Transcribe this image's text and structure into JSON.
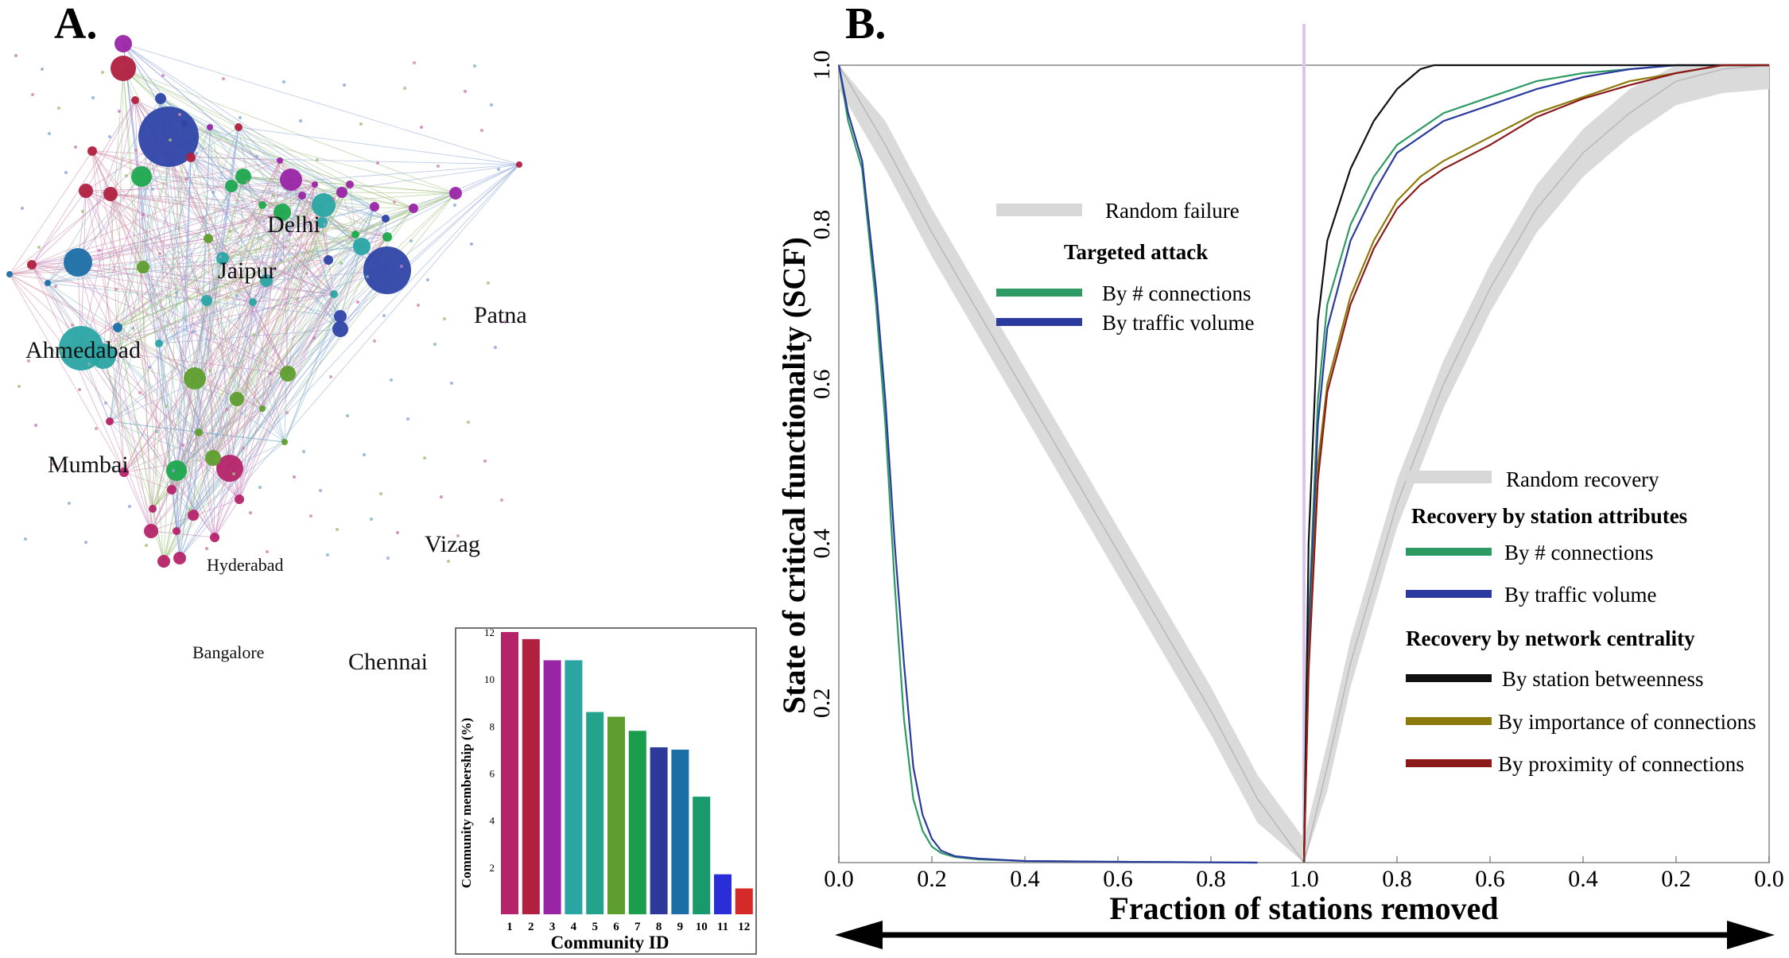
{
  "panel_a": {
    "letter": "A.",
    "city_labels": [
      "Delhi",
      "Jaipur",
      "Patna",
      "Ahmedabad",
      "Mumbai",
      "Vizag",
      "Hyderabad",
      "Bangalore",
      "Chennai"
    ]
  },
  "panel_b": {
    "letter": "B."
  },
  "chart_data": [
    {
      "type": "bar",
      "xlabel": "Community ID",
      "ylabel": "Community membership (%)",
      "categories": [
        "1",
        "2",
        "3",
        "4",
        "5",
        "6",
        "7",
        "8",
        "9",
        "10",
        "11",
        "12"
      ],
      "values": [
        12.0,
        11.7,
        10.8,
        10.8,
        8.6,
        8.4,
        7.8,
        7.1,
        7.0,
        5.0,
        1.7,
        1.1
      ],
      "colors": [
        "#b5246a",
        "#b0203f",
        "#9a24a6",
        "#2aa5a4",
        "#23a38c",
        "#5e9e2e",
        "#1b9e4b",
        "#2d3a9a",
        "#1b6fa6",
        "#199a6c",
        "#2a2ed6",
        "#d62a2a"
      ],
      "ylim": [
        0,
        12
      ],
      "yticks": [
        "2",
        "4",
        "6",
        "8",
        "10",
        "12"
      ]
    },
    {
      "type": "line",
      "ylabel": "State of critical functionality (SCF)",
      "xlabel": "Fraction of stations removed",
      "ylim": [
        0,
        1
      ],
      "yticks": [
        "0.2",
        "0.4",
        "0.6",
        "0.8",
        "1.0"
      ],
      "xticks": [
        "0.0",
        "0.2",
        "0.4",
        "0.6",
        "0.8",
        "1.0",
        "0.8",
        "0.6",
        "0.4",
        "0.2",
        "0.0"
      ],
      "legend_failure": {
        "random_label": "Random failure",
        "group_title": "Targeted attack",
        "items": [
          {
            "label": "By # connections",
            "color": "#2e9a63"
          },
          {
            "label": "By traffic volume",
            "color": "#2b3a9e"
          }
        ]
      },
      "legend_recovery": {
        "random_label": "Random recovery",
        "group1_title": "Recovery by station attributes",
        "group1_items": [
          {
            "label": "By # connections",
            "color": "#2e9a63"
          },
          {
            "label": "By traffic volume",
            "color": "#2b3a9e"
          }
        ],
        "group2_title": "Recovery by network centrality",
        "group2_items": [
          {
            "label": "By station betweenness",
            "color": "#111111"
          },
          {
            "label": "By importance of connections",
            "color": "#8c7b0c"
          },
          {
            "label": "By proximity of connections",
            "color": "#8b1a1a"
          }
        ]
      },
      "series_attack": [
        {
          "name": "By # connections",
          "color": "#2e9a63",
          "x": [
            0,
            0.02,
            0.05,
            0.08,
            0.1,
            0.12,
            0.14,
            0.16,
            0.18,
            0.2,
            0.22,
            0.25,
            0.3,
            0.4,
            0.6,
            0.9
          ],
          "y": [
            1.0,
            0.93,
            0.87,
            0.7,
            0.55,
            0.35,
            0.18,
            0.08,
            0.04,
            0.02,
            0.012,
            0.007,
            0.004,
            0.002,
            0.001,
            0.0
          ]
        },
        {
          "name": "By traffic volume",
          "color": "#2b3a9e",
          "x": [
            0,
            0.02,
            0.05,
            0.08,
            0.1,
            0.12,
            0.14,
            0.16,
            0.18,
            0.2,
            0.22,
            0.25,
            0.3,
            0.4,
            0.6,
            0.9
          ],
          "y": [
            1.0,
            0.94,
            0.88,
            0.72,
            0.58,
            0.4,
            0.25,
            0.12,
            0.06,
            0.03,
            0.015,
            0.008,
            0.005,
            0.002,
            0.001,
            0.0
          ]
        }
      ],
      "series_recovery": [
        {
          "name": "By # connections",
          "color": "#2e9a63",
          "x": [
            1.0,
            0.99,
            0.97,
            0.95,
            0.9,
            0.85,
            0.8,
            0.75,
            0.7,
            0.6,
            0.5,
            0.4,
            0.3,
            0.2,
            0.1,
            0.0
          ],
          "y": [
            0.0,
            0.3,
            0.58,
            0.7,
            0.8,
            0.86,
            0.9,
            0.92,
            0.94,
            0.96,
            0.98,
            0.99,
            0.995,
            1.0,
            1.0,
            1.0
          ]
        },
        {
          "name": "By traffic volume",
          "color": "#2b3a9e",
          "x": [
            1.0,
            0.99,
            0.97,
            0.95,
            0.9,
            0.85,
            0.8,
            0.75,
            0.7,
            0.6,
            0.5,
            0.4,
            0.3,
            0.2,
            0.1,
            0.0
          ],
          "y": [
            0.0,
            0.28,
            0.55,
            0.67,
            0.78,
            0.84,
            0.89,
            0.91,
            0.93,
            0.95,
            0.97,
            0.985,
            0.995,
            1.0,
            1.0,
            1.0
          ]
        },
        {
          "name": "By station betweenness",
          "color": "#111111",
          "x": [
            1.0,
            0.99,
            0.97,
            0.95,
            0.9,
            0.85,
            0.8,
            0.75,
            0.72,
            0.7,
            0.6,
            0.4,
            0.2,
            0.0
          ],
          "y": [
            0.0,
            0.4,
            0.68,
            0.78,
            0.87,
            0.93,
            0.97,
            0.995,
            1.0,
            1.0,
            1.0,
            1.0,
            1.0,
            1.0
          ]
        },
        {
          "name": "By importance of connections",
          "color": "#8c7b0c",
          "x": [
            1.0,
            0.99,
            0.97,
            0.95,
            0.9,
            0.85,
            0.8,
            0.75,
            0.7,
            0.6,
            0.5,
            0.4,
            0.3,
            0.2,
            0.1,
            0.0
          ],
          "y": [
            0.0,
            0.25,
            0.5,
            0.6,
            0.71,
            0.78,
            0.83,
            0.86,
            0.88,
            0.91,
            0.94,
            0.96,
            0.98,
            0.99,
            1.0,
            1.0
          ]
        },
        {
          "name": "By proximity of connections",
          "color": "#8b1a1a",
          "x": [
            1.0,
            0.99,
            0.97,
            0.95,
            0.9,
            0.85,
            0.8,
            0.75,
            0.7,
            0.6,
            0.5,
            0.4,
            0.3,
            0.2,
            0.1,
            0.0
          ],
          "y": [
            0.0,
            0.24,
            0.48,
            0.59,
            0.7,
            0.77,
            0.82,
            0.85,
            0.87,
            0.9,
            0.935,
            0.958,
            0.975,
            0.99,
            1.0,
            1.0
          ]
        }
      ],
      "random_failure_band": {
        "x": [
          0,
          0.1,
          0.2,
          0.3,
          0.4,
          0.5,
          0.6,
          0.7,
          0.8,
          0.9,
          1.0
        ],
        "mean": [
          1.0,
          0.9,
          0.79,
          0.69,
          0.59,
          0.49,
          0.39,
          0.29,
          0.19,
          0.08,
          0.0
        ],
        "spread": 0.03
      },
      "random_recovery_band": {
        "x": [
          1.0,
          0.95,
          0.9,
          0.8,
          0.7,
          0.6,
          0.5,
          0.4,
          0.3,
          0.2,
          0.1,
          0.0
        ],
        "mean": [
          0.0,
          0.12,
          0.25,
          0.45,
          0.6,
          0.72,
          0.82,
          0.89,
          0.94,
          0.98,
          0.995,
          1.0
        ],
        "spread": 0.03
      }
    }
  ]
}
